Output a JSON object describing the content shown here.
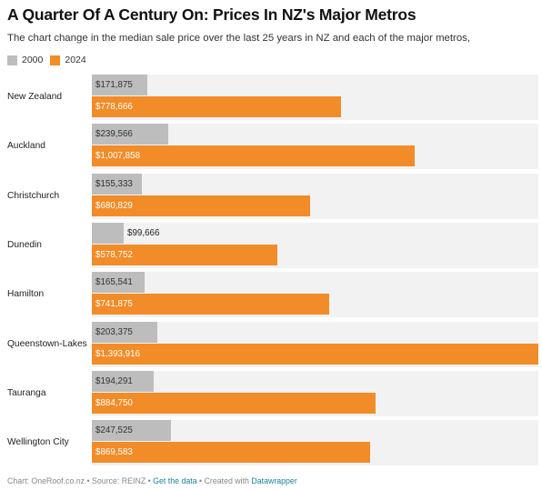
{
  "title": "A Quarter Of A Century On: Prices In NZ's Major Metros",
  "subtitle": "The chart change in the median sale price over the last 25 years in NZ and each of the major metros,",
  "legend": [
    {
      "label": "2000",
      "color": "#bdbdbd"
    },
    {
      "label": "2024",
      "color": "#f28c28"
    }
  ],
  "footer": {
    "chart_credit": "Chart: OneRoof.co.nz",
    "sep1": " • ",
    "source": "Source: REINZ",
    "sep2": " • ",
    "get_data": "Get the data",
    "sep3": " • ",
    "created_with": "Created with ",
    "datawrapper": "Datawrapper"
  },
  "chart_data": {
    "type": "bar",
    "orientation": "horizontal",
    "categories": [
      "New Zealand",
      "Auckland",
      "Christchurch",
      "Dunedin",
      "Hamilton",
      "Queenstown-Lakes",
      "Tauranga",
      "Wellington City"
    ],
    "series": [
      {
        "name": "2000",
        "color": "#bdbdbd",
        "values": [
          171875,
          239566,
          155333,
          99666,
          165541,
          203375,
          194291,
          247525
        ],
        "labels": [
          "$171,875",
          "$239,566",
          "$155,333",
          "$99,666",
          "$165,541",
          "$203,375",
          "$194,291",
          "$247,525"
        ]
      },
      {
        "name": "2024",
        "color": "#f28c28",
        "values": [
          778666,
          1007858,
          680829,
          578752,
          741875,
          1393916,
          884750,
          869583
        ],
        "labels": [
          "$778,666",
          "$1,007,858",
          "$680,829",
          "$578,752",
          "$741,875",
          "$1,393,916",
          "$884,750",
          "$869,583"
        ]
      }
    ],
    "xlim": [
      0,
      1393916
    ],
    "grid": false,
    "legend_position": "top-left"
  }
}
